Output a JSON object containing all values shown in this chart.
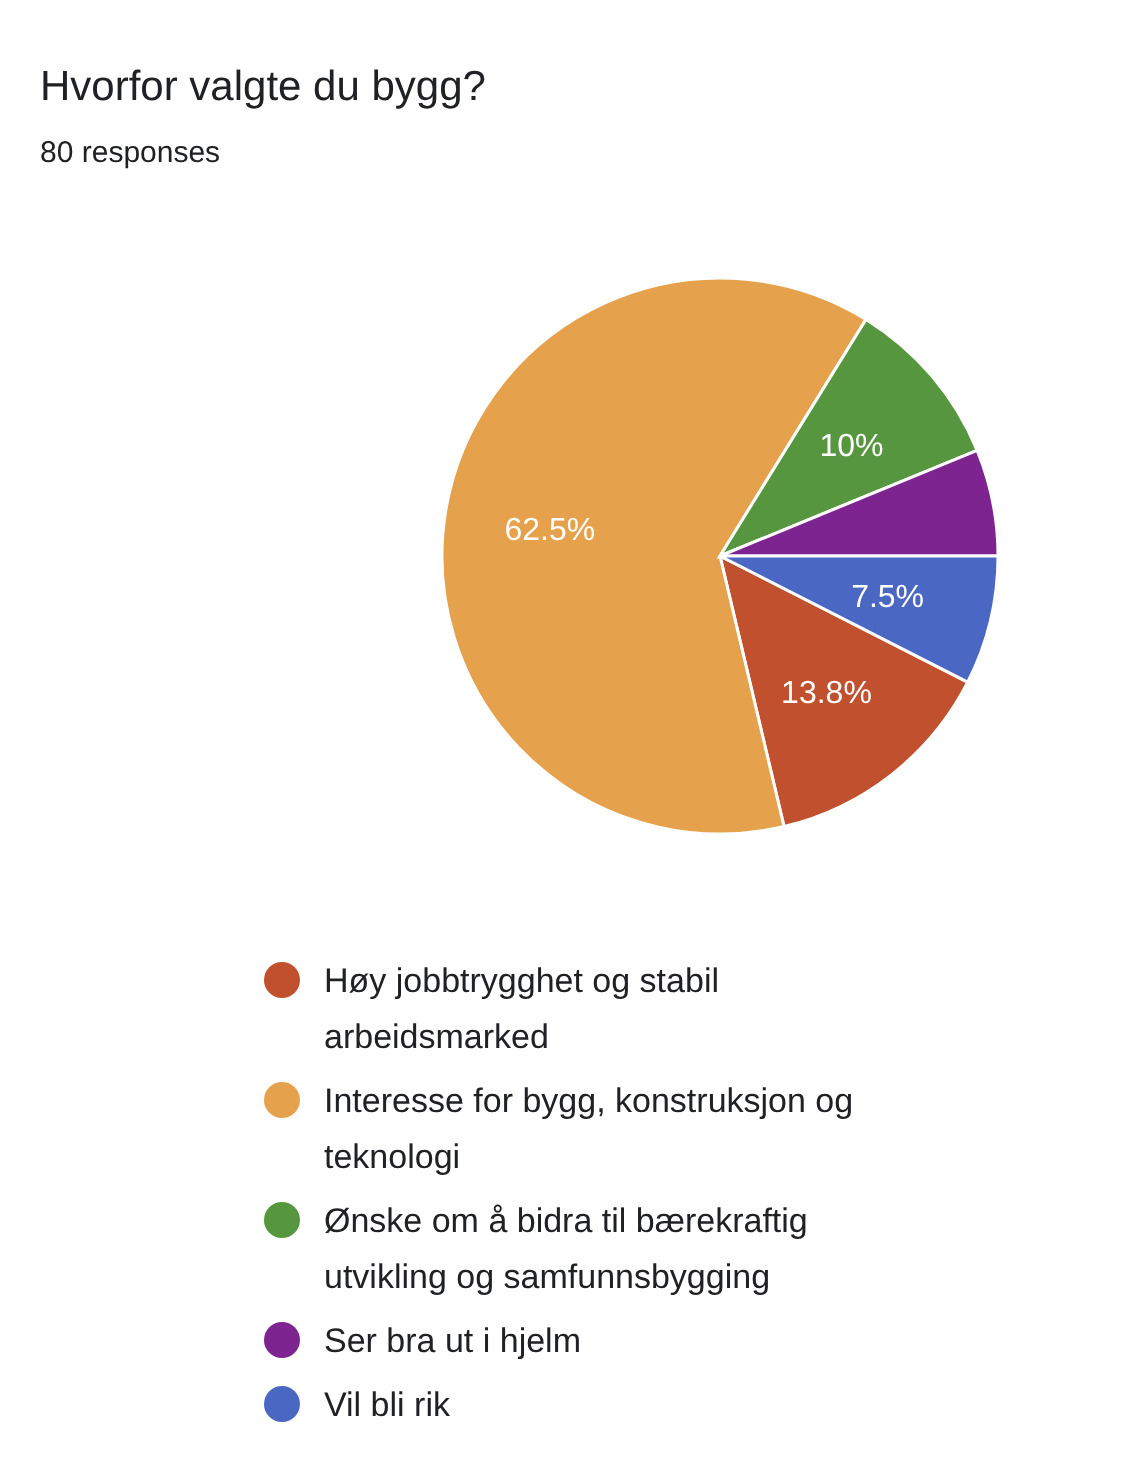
{
  "chart_data": {
    "type": "pie",
    "title": "Hvorfor valgte du bygg?",
    "subtitle": "80 responses",
    "categories": [
      "Høy jobbtrygghet og stabil arbeidsmarked",
      "Interesse for bygg, konstruksjon og teknologi",
      "Ønske om å bidra til bærekraftig utvikling og samfunnsbygging",
      "Ser bra ut i hjelm",
      "Vil bli rik"
    ],
    "values": [
      13.8,
      62.5,
      10,
      6.2,
      7.5
    ],
    "colors": [
      "#c0502e",
      "#e5a14c",
      "#56963f",
      "#7e2490",
      "#4a67c4"
    ],
    "value_labels": [
      "13.8%",
      "62.5%",
      "10%",
      null,
      "7.5%"
    ],
    "legend": "bottom"
  }
}
